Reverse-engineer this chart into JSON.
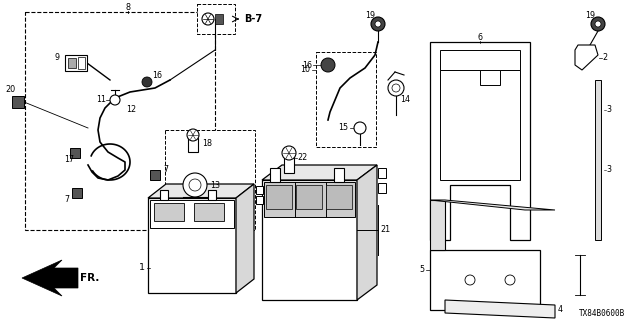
{
  "bg_color": "#ffffff",
  "diagram_code": "TX84B0600B",
  "fig_width": 6.4,
  "fig_height": 3.2,
  "dpi": 100,
  "label_fontsize": 5.8
}
